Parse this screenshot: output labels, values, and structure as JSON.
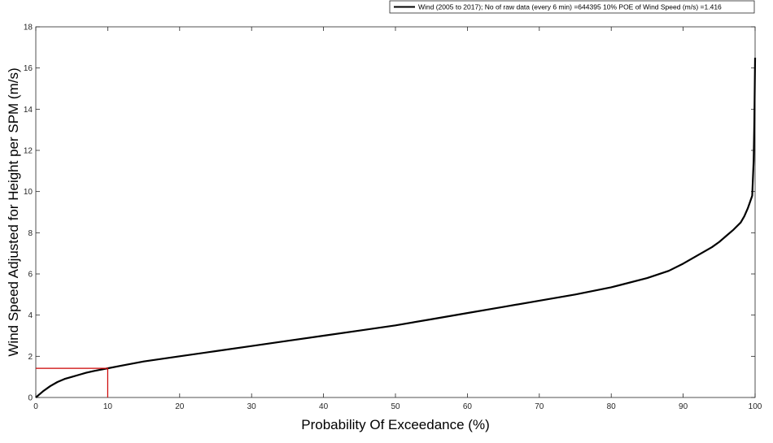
{
  "chart_data": {
    "type": "line",
    "title": "",
    "xlabel": "Probability Of Exceedance (%)",
    "ylabel": "Wind Speed Adjusted for Height per SPM (m/s)",
    "xlim": [
      0,
      100
    ],
    "ylim": [
      0,
      18
    ],
    "x_ticks": [
      0,
      10,
      20,
      30,
      40,
      50,
      60,
      70,
      80,
      90,
      100
    ],
    "y_ticks": [
      0,
      2,
      4,
      6,
      8,
      10,
      12,
      14,
      16,
      18
    ],
    "grid": false,
    "legend_position": "top-right",
    "series": [
      {
        "name": "Wind (2005 to 2017); No of raw data (every 6 min) =644395    10% POE of Wind Speed (m/s) =1.416",
        "color": "#000000",
        "x": [
          0,
          0.5,
          1,
          2,
          3,
          4,
          5,
          6,
          7,
          8,
          9,
          10,
          12,
          15,
          20,
          25,
          30,
          35,
          40,
          45,
          50,
          55,
          60,
          65,
          70,
          75,
          80,
          85,
          88,
          90,
          92,
          94,
          95,
          96,
          97,
          98,
          98.5,
          99,
          99.3,
          99.6,
          99.8,
          99.9,
          100
        ],
        "y": [
          0,
          0.15,
          0.3,
          0.55,
          0.75,
          0.9,
          1.0,
          1.1,
          1.2,
          1.28,
          1.35,
          1.416,
          1.55,
          1.75,
          2.0,
          2.25,
          2.5,
          2.75,
          3.0,
          3.25,
          3.5,
          3.8,
          4.1,
          4.4,
          4.7,
          5.0,
          5.35,
          5.8,
          6.15,
          6.5,
          6.9,
          7.3,
          7.55,
          7.85,
          8.15,
          8.5,
          8.8,
          9.2,
          9.5,
          9.8,
          11.5,
          13.5,
          16.5
        ]
      }
    ],
    "annotations": [
      {
        "type": "marker-line",
        "color": "#cc0000",
        "x": 10,
        "y": 1.416
      }
    ]
  }
}
